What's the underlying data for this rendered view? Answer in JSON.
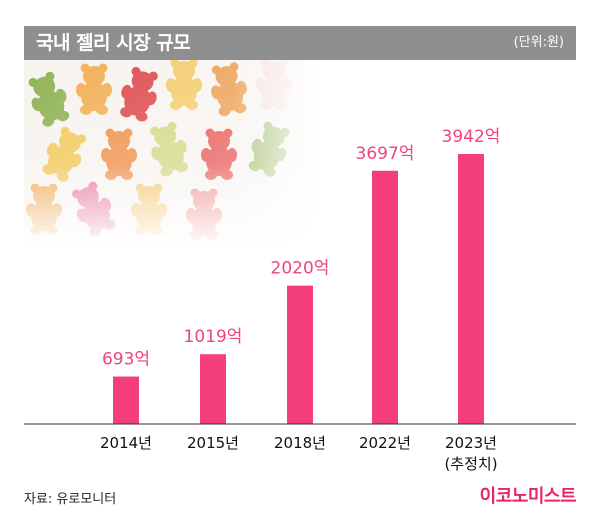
{
  "header": {
    "title": "국내 젤리 시장 규모",
    "unit": "(단위:원)"
  },
  "footer": {
    "source": "자료: 유로모니터",
    "brand": "이코노미스트"
  },
  "colors": {
    "bar": "#f43f7b",
    "label": "#f0437e",
    "title_bar": "#8f8f8f"
  },
  "chart_data": {
    "type": "bar",
    "categories": [
      "2014년",
      "2015년",
      "2018년",
      "2022년",
      "2023년"
    ],
    "category_notes": [
      "",
      "",
      "",
      "",
      "(추정치)"
    ],
    "values": [
      693,
      1019,
      2020,
      3697,
      3942
    ],
    "value_labels": [
      "693억",
      "1019억",
      "2020억",
      "3697억",
      "3942억"
    ],
    "ylabel": "",
    "xlabel": "",
    "ylim": [
      0,
      4000
    ],
    "grid": false
  }
}
